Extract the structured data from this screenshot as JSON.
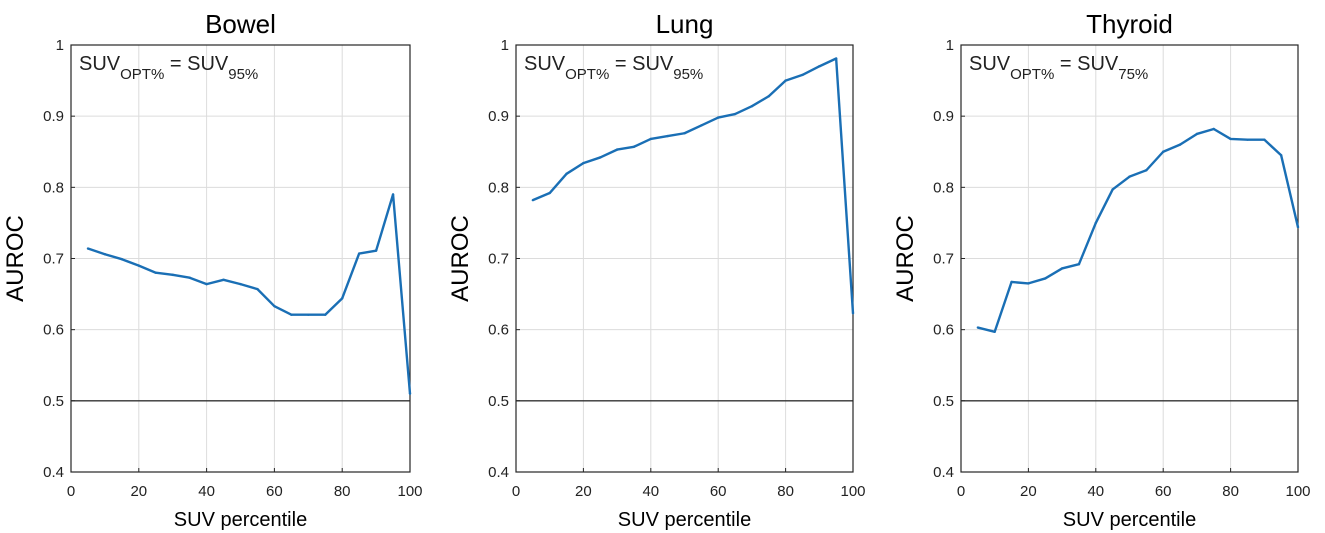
{
  "chart_data": [
    {
      "type": "line",
      "title": "Bowel",
      "xlabel": "SUV percentile",
      "ylabel": "AUROC",
      "xlim": [
        0,
        100
      ],
      "ylim": [
        0.4,
        1.0
      ],
      "xticks": [
        "0",
        "20",
        "40",
        "60",
        "80",
        "100"
      ],
      "yticks": [
        "0.4",
        "0.5",
        "0.6",
        "0.7",
        "0.8",
        "0.9",
        "1"
      ],
      "grid": true,
      "reference_line": 0.5,
      "annotation": {
        "main": "SUV",
        "sub1": "OPT%",
        "mid": " = SUV",
        "sub2": "95%"
      },
      "line_color": "#1a6fb5",
      "x": [
        5,
        10,
        15,
        20,
        25,
        30,
        35,
        40,
        45,
        50,
        55,
        60,
        65,
        70,
        75,
        80,
        85,
        90,
        95,
        100
      ],
      "y": [
        0.714,
        0.706,
        0.699,
        0.69,
        0.68,
        0.677,
        0.673,
        0.664,
        0.67,
        0.664,
        0.657,
        0.633,
        0.621,
        0.621,
        0.621,
        0.644,
        0.707,
        0.711,
        0.79,
        0.51
      ]
    },
    {
      "type": "line",
      "title": "Lung",
      "xlabel": "SUV percentile",
      "ylabel": "AUROC",
      "xlim": [
        0,
        100
      ],
      "ylim": [
        0.4,
        1.0
      ],
      "xticks": [
        "0",
        "20",
        "40",
        "60",
        "80",
        "100"
      ],
      "yticks": [
        "0.4",
        "0.5",
        "0.6",
        "0.7",
        "0.8",
        "0.9",
        "1"
      ],
      "grid": true,
      "reference_line": 0.5,
      "annotation": {
        "main": "SUV",
        "sub1": "OPT%",
        "mid": " = SUV",
        "sub2": "95%"
      },
      "line_color": "#1a6fb5",
      "x": [
        5,
        10,
        15,
        20,
        25,
        30,
        35,
        40,
        45,
        50,
        55,
        60,
        65,
        70,
        75,
        80,
        85,
        90,
        95,
        100
      ],
      "y": [
        0.782,
        0.792,
        0.819,
        0.834,
        0.842,
        0.853,
        0.857,
        0.868,
        0.872,
        0.876,
        0.887,
        0.898,
        0.903,
        0.914,
        0.928,
        0.95,
        0.958,
        0.97,
        0.981,
        0.623
      ]
    },
    {
      "type": "line",
      "title": "Thyroid",
      "xlabel": "SUV percentile",
      "ylabel": "AUROC",
      "xlim": [
        0,
        100
      ],
      "ylim": [
        0.4,
        1.0
      ],
      "xticks": [
        "0",
        "20",
        "40",
        "60",
        "80",
        "100"
      ],
      "yticks": [
        "0.4",
        "0.5",
        "0.6",
        "0.7",
        "0.8",
        "0.9",
        "1"
      ],
      "grid": true,
      "reference_line": 0.5,
      "annotation": {
        "main": "SUV",
        "sub1": "OPT%",
        "mid": " = SUV",
        "sub2": "75%"
      },
      "line_color": "#1a6fb5",
      "x": [
        5,
        10,
        15,
        20,
        25,
        30,
        35,
        40,
        45,
        50,
        55,
        60,
        65,
        70,
        75,
        80,
        85,
        90,
        95,
        100
      ],
      "y": [
        0.603,
        0.597,
        0.667,
        0.665,
        0.672,
        0.686,
        0.692,
        0.75,
        0.797,
        0.815,
        0.824,
        0.85,
        0.86,
        0.875,
        0.882,
        0.868,
        0.867,
        0.867,
        0.845,
        0.744
      ]
    }
  ]
}
